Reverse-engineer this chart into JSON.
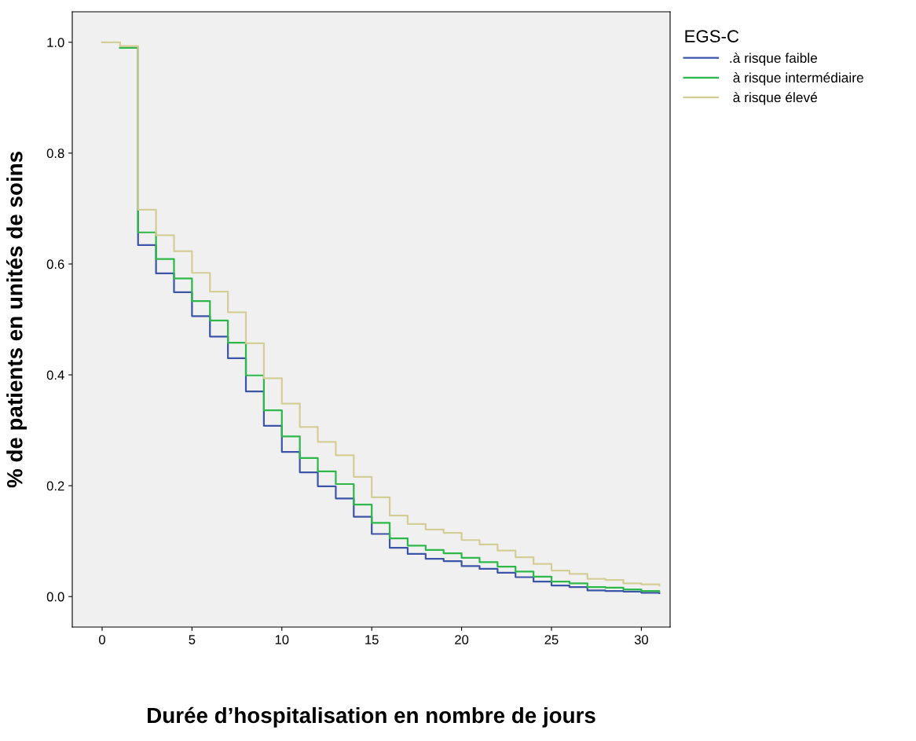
{
  "chart_data": {
    "type": "step",
    "xlabel": "Durée d’hospitalisation en nombre de jours",
    "ylabel": "% de patients en unités de soins",
    "legend_title": "EGS-C",
    "legend": "top right",
    "x": [
      0,
      1,
      2,
      3,
      4,
      5,
      6,
      7,
      8,
      9,
      10,
      11,
      12,
      13,
      14,
      15,
      16,
      17,
      18,
      19,
      20,
      21,
      22,
      23,
      24,
      25,
      26,
      27,
      28,
      29,
      30,
      31
    ],
    "series": [
      {
        "name": ".à risque faible",
        "color": "#3d55a8",
        "values": [
          null,
          0.99,
          0.634,
          0.583,
          0.549,
          0.506,
          0.469,
          0.43,
          0.37,
          0.308,
          0.261,
          0.224,
          0.199,
          0.177,
          0.144,
          0.113,
          0.088,
          0.077,
          0.068,
          0.064,
          0.055,
          0.05,
          0.043,
          0.035,
          0.027,
          0.02,
          0.017,
          0.011,
          0.01,
          0.009,
          0.007,
          0.006
        ]
      },
      {
        "name": " à risque intermédiaire",
        "color": "#2db84a",
        "values": [
          null,
          0.99,
          0.657,
          0.609,
          0.574,
          0.533,
          0.498,
          0.458,
          0.399,
          0.336,
          0.289,
          0.25,
          0.226,
          0.203,
          0.166,
          0.133,
          0.105,
          0.092,
          0.084,
          0.078,
          0.07,
          0.062,
          0.054,
          0.045,
          0.036,
          0.027,
          0.024,
          0.017,
          0.016,
          0.013,
          0.01,
          0.009
        ]
      },
      {
        "name": " à risque élevé",
        "color": "#d4cd96",
        "values": [
          1.0,
          0.993,
          0.698,
          0.652,
          0.623,
          0.584,
          0.55,
          0.513,
          0.457,
          0.394,
          0.348,
          0.306,
          0.279,
          0.255,
          0.216,
          0.179,
          0.146,
          0.131,
          0.121,
          0.115,
          0.102,
          0.094,
          0.083,
          0.071,
          0.059,
          0.047,
          0.041,
          0.032,
          0.03,
          0.024,
          0.022,
          0.02
        ]
      }
    ],
    "xlim": [
      -1.66,
      31.6
    ],
    "ylim": [
      -0.055,
      1.055
    ],
    "xticks": [
      0,
      5,
      10,
      15,
      20,
      25,
      30
    ],
    "yticks": [
      {
        "value": 0,
        "label": "0.0"
      },
      {
        "value": 0.2,
        "label": "0.2"
      },
      {
        "value": 0.4,
        "label": "0.4"
      },
      {
        "value": 0.6,
        "label": "0.6"
      },
      {
        "value": 0.8,
        "label": "0.8"
      },
      {
        "value": 1.0,
        "label": "1.0"
      }
    ],
    "grid": false,
    "line_style": "solid",
    "marker": "none"
  }
}
